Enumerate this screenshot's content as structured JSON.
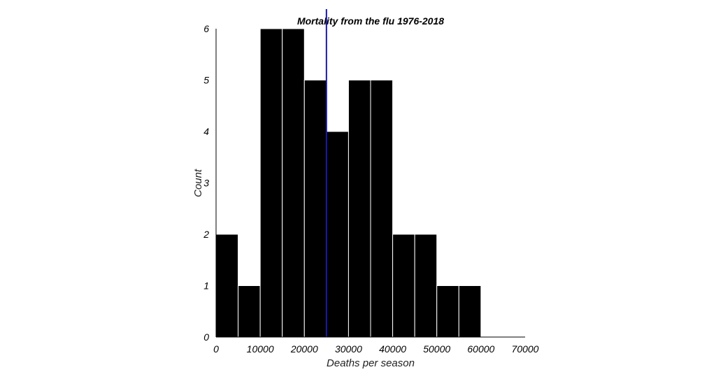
{
  "chart_data": {
    "type": "bar",
    "title": "Mortality from the flu 1976-2018",
    "xlabel": "Deaths per season",
    "ylabel": "Count",
    "xlim": [
      0,
      70000
    ],
    "ylim": [
      0,
      6
    ],
    "xticks": [
      0,
      10000,
      20000,
      30000,
      40000,
      50000,
      60000,
      70000
    ],
    "yticks": [
      0,
      1,
      2,
      3,
      4,
      5,
      6
    ],
    "bins": [
      {
        "start": 0,
        "end": 5000,
        "count": 2
      },
      {
        "start": 5000,
        "end": 10000,
        "count": 1
      },
      {
        "start": 10000,
        "end": 15000,
        "count": 6
      },
      {
        "start": 15000,
        "end": 20000,
        "count": 6
      },
      {
        "start": 20000,
        "end": 25000,
        "count": 5
      },
      {
        "start": 25000,
        "end": 30000,
        "count": 4
      },
      {
        "start": 30000,
        "end": 35000,
        "count": 5
      },
      {
        "start": 35000,
        "end": 40000,
        "count": 5
      },
      {
        "start": 40000,
        "end": 45000,
        "count": 2
      },
      {
        "start": 45000,
        "end": 50000,
        "count": 2
      },
      {
        "start": 50000,
        "end": 55000,
        "count": 1
      },
      {
        "start": 55000,
        "end": 60000,
        "count": 1
      }
    ],
    "reference_line": {
      "x": 25000,
      "color": "#1a1aa8"
    },
    "bar_color": "#000000",
    "bar_edge_color": "#ffffff",
    "grid": false
  }
}
